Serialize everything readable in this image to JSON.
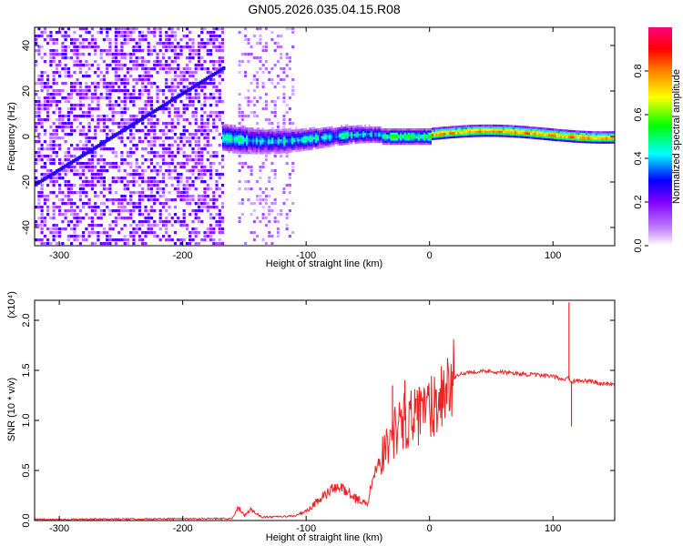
{
  "title": "GN05.2026.035.04.15.R08",
  "chart_data": [
    {
      "type": "heatmap",
      "xlabel": "Height of straight line (km)",
      "ylabel": "Frequency (Hz)",
      "xlim": [
        -320,
        150
      ],
      "ylim": [
        -48,
        48
      ],
      "x_ticks": [
        -300,
        -200,
        -100,
        0,
        100
      ],
      "x_tick_labels": [
        "-300",
        "-200",
        "-100",
        "0",
        "100"
      ],
      "y_ticks": [
        -40,
        -20,
        0,
        20,
        40
      ],
      "y_tick_labels": [
        "-40",
        "-20",
        "0",
        "20",
        "40"
      ],
      "colorbar": {
        "label": "Normalized spectral amplitude",
        "range": [
          0,
          1
        ],
        "ticks": [
          0,
          0.2,
          0.4,
          0.6,
          0.8
        ],
        "tick_labels": [
          "0.0",
          "0.2",
          "0.4",
          "0.6",
          "0.8"
        ],
        "colormap": [
          "#ffffff",
          "#8000ff",
          "#0000ff",
          "#00ffff",
          "#00ff00",
          "#ffff00",
          "#ff0000",
          "#ff0080"
        ]
      },
      "regions": [
        {
          "name": "broadband noise",
          "x_range": [
            -320,
            -168
          ],
          "freq_range": [
            -48,
            48
          ],
          "amplitude": 0.15
        },
        {
          "name": "diagonal chirp",
          "x_start": -320,
          "freq_start": -21,
          "x_end": -168,
          "freq_end": 30,
          "amplitude": 0.3
        },
        {
          "name": "sparse noise",
          "x_range": [
            -155,
            -110
          ],
          "freq_range": [
            -48,
            48
          ],
          "amplitude": 0.08
        },
        {
          "name": "signal band",
          "x_range": [
            -168,
            150
          ],
          "center_freq": 0,
          "amplitude_max": 1.0
        }
      ]
    },
    {
      "type": "line",
      "xlabel": "Height of straight line (km)",
      "ylabel": "SNR (10 * v/v)",
      "y_multiplier": "(x10⁴)",
      "xlim": [
        -320,
        150
      ],
      "ylim": [
        0,
        2.2
      ],
      "x_ticks": [
        -300,
        -200,
        -100,
        0,
        100
      ],
      "x_tick_labels": [
        "-300",
        "-200",
        "-100",
        "0",
        "100"
      ],
      "y_ticks": [
        0,
        0.5,
        1.0,
        1.5,
        2.0
      ],
      "y_tick_labels": [
        "0.0",
        "0.5",
        "1.0",
        "1.5",
        "2.0"
      ],
      "color": "#ee2222",
      "series": [
        {
          "name": "SNR",
          "x": [
            -320,
            -160,
            -155,
            -150,
            -145,
            -140,
            -135,
            -110,
            -100,
            -90,
            -80,
            -70,
            -60,
            -50,
            -45,
            -40,
            -35,
            -30,
            -25,
            -20,
            -15,
            -10,
            -5,
            0,
            5,
            10,
            15,
            20,
            25,
            30,
            40,
            50,
            60,
            70,
            80,
            90,
            100,
            105,
            110,
            112,
            114,
            116,
            120,
            130,
            140,
            150
          ],
          "y": [
            0.01,
            0.02,
            0.12,
            0.05,
            0.1,
            0.06,
            0.03,
            0.04,
            0.08,
            0.18,
            0.28,
            0.3,
            0.2,
            0.15,
            0.45,
            0.6,
            0.75,
            0.85,
            0.95,
            1.0,
            1.05,
            1.0,
            1.1,
            1.15,
            1.2,
            1.28,
            1.35,
            1.42,
            1.46,
            1.48,
            1.49,
            1.49,
            1.48,
            1.47,
            1.46,
            1.45,
            1.44,
            1.42,
            1.41,
            1.45,
            1.4,
            1.39,
            1.4,
            1.39,
            1.37,
            1.36
          ],
          "spikes": [
            {
              "x": 113,
              "y": 2.18
            },
            {
              "x": 115,
              "y": 0.94
            },
            {
              "x": -30,
              "y": 1.35
            },
            {
              "x": -20,
              "y": 1.4
            },
            {
              "x": -10,
              "y": 1.3
            }
          ]
        }
      ]
    }
  ]
}
